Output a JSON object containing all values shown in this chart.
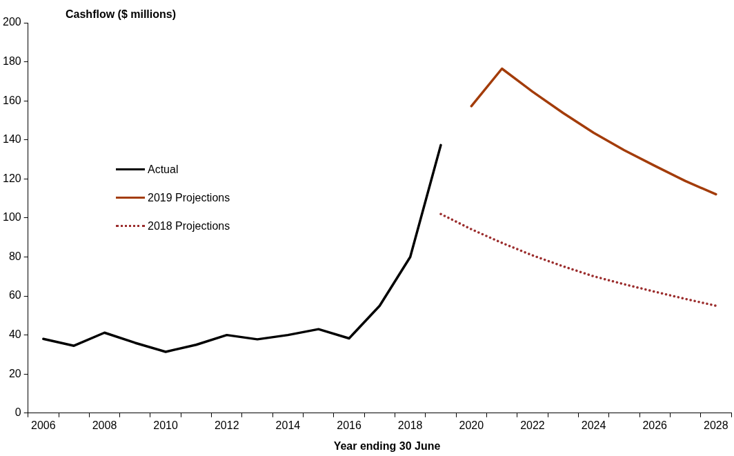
{
  "chart_data": {
    "type": "line",
    "ylabel": "Cashflow ($ millions)",
    "xlabel": "Year ending 30 June",
    "categories": [
      "2006",
      null,
      "2008",
      null,
      "2010",
      null,
      "2012",
      null,
      "2014",
      null,
      "2016",
      null,
      "2018",
      null,
      "2020",
      null,
      "2022",
      null,
      "2024",
      null,
      "2026",
      null,
      "2028"
    ],
    "series": [
      {
        "name": "Actual",
        "color": "#000000",
        "line_style": "solid",
        "values": [
          38,
          34.5,
          41.2,
          36,
          31.4,
          35,
          40,
          37.8,
          40,
          43,
          38.3,
          55,
          80,
          137.3,
          null,
          null,
          null,
          null,
          null,
          null,
          null,
          null,
          null
        ]
      },
      {
        "name": "2019 Projections",
        "color": "#a33c0a",
        "line_style": "solid",
        "values": [
          null,
          null,
          null,
          null,
          null,
          null,
          null,
          null,
          null,
          null,
          null,
          null,
          null,
          null,
          157.3,
          176.5,
          164.7,
          153.8,
          143.6,
          134.7,
          126.7,
          118.9,
          112.1
        ]
      },
      {
        "name": "2018 Projections",
        "color": "#9b2d2d",
        "line_style": "dotted",
        "values": [
          null,
          null,
          null,
          null,
          null,
          null,
          null,
          null,
          null,
          null,
          null,
          null,
          null,
          102,
          94.2,
          87.2,
          80.8,
          75.2,
          70.1,
          66,
          62.2,
          58.5,
          55
        ]
      }
    ],
    "ylim": [
      0,
      200
    ],
    "yticks": [
      0,
      20,
      40,
      60,
      80,
      100,
      120,
      140,
      160,
      180,
      200
    ],
    "grid": false,
    "legend": "left",
    "marker": "none"
  }
}
